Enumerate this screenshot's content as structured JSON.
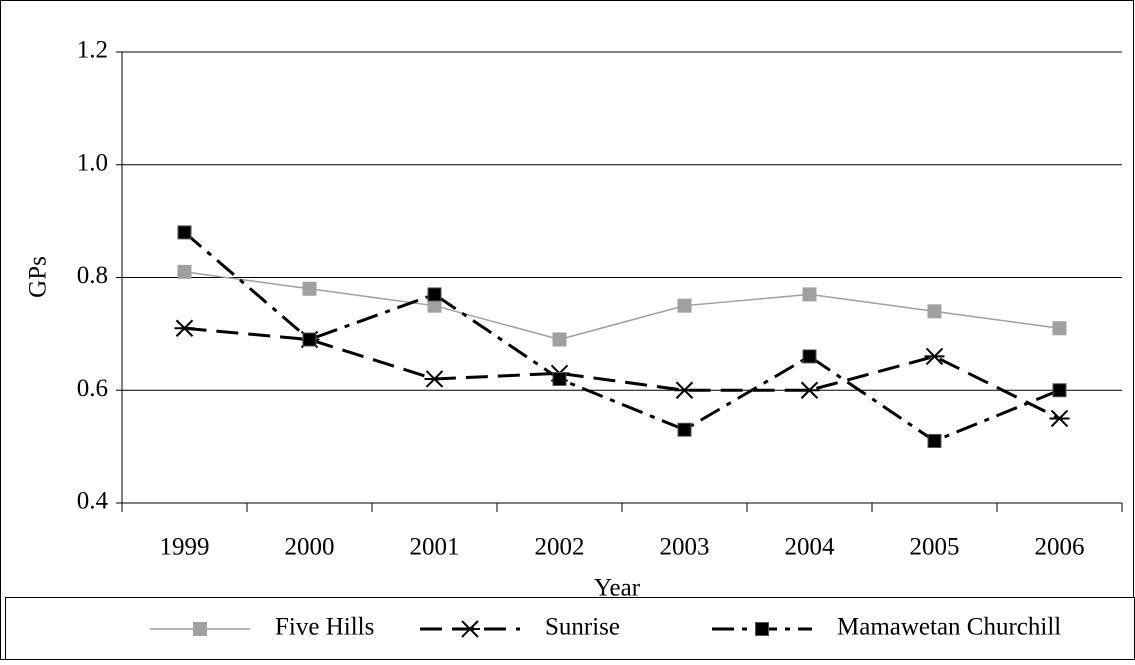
{
  "chart_data": {
    "type": "line",
    "x_label": "Year",
    "y_label": "GPs",
    "categories": [
      "1999",
      "2000",
      "2001",
      "2002",
      "2003",
      "2004",
      "2005",
      "2006"
    ],
    "series": [
      {
        "name": "Five Hills",
        "color": "#a0a0a0",
        "values": [
          0.81,
          0.78,
          0.75,
          0.69,
          0.75,
          0.77,
          0.74,
          0.71
        ]
      },
      {
        "name": "Sunrise",
        "color": "#000000",
        "values": [
          0.71,
          0.69,
          0.62,
          0.63,
          0.6,
          0.6,
          0.66,
          0.55
        ]
      },
      {
        "name": "Mamawetan Churchill",
        "color": "#000000",
        "values": [
          0.88,
          0.69,
          0.77,
          0.62,
          0.53,
          0.66,
          0.51,
          0.6
        ]
      }
    ],
    "ylim": [
      0.4,
      1.2
    ],
    "yticks": [
      {
        "value": 0.4,
        "label": "0.4"
      },
      {
        "value": 0.6,
        "label": "0.6"
      },
      {
        "value": 0.8,
        "label": "0.8"
      },
      {
        "value": 1.0,
        "label": "1.0"
      },
      {
        "value": 1.2,
        "label": "1.2"
      }
    ],
    "grid": true,
    "legend": "bottom"
  }
}
